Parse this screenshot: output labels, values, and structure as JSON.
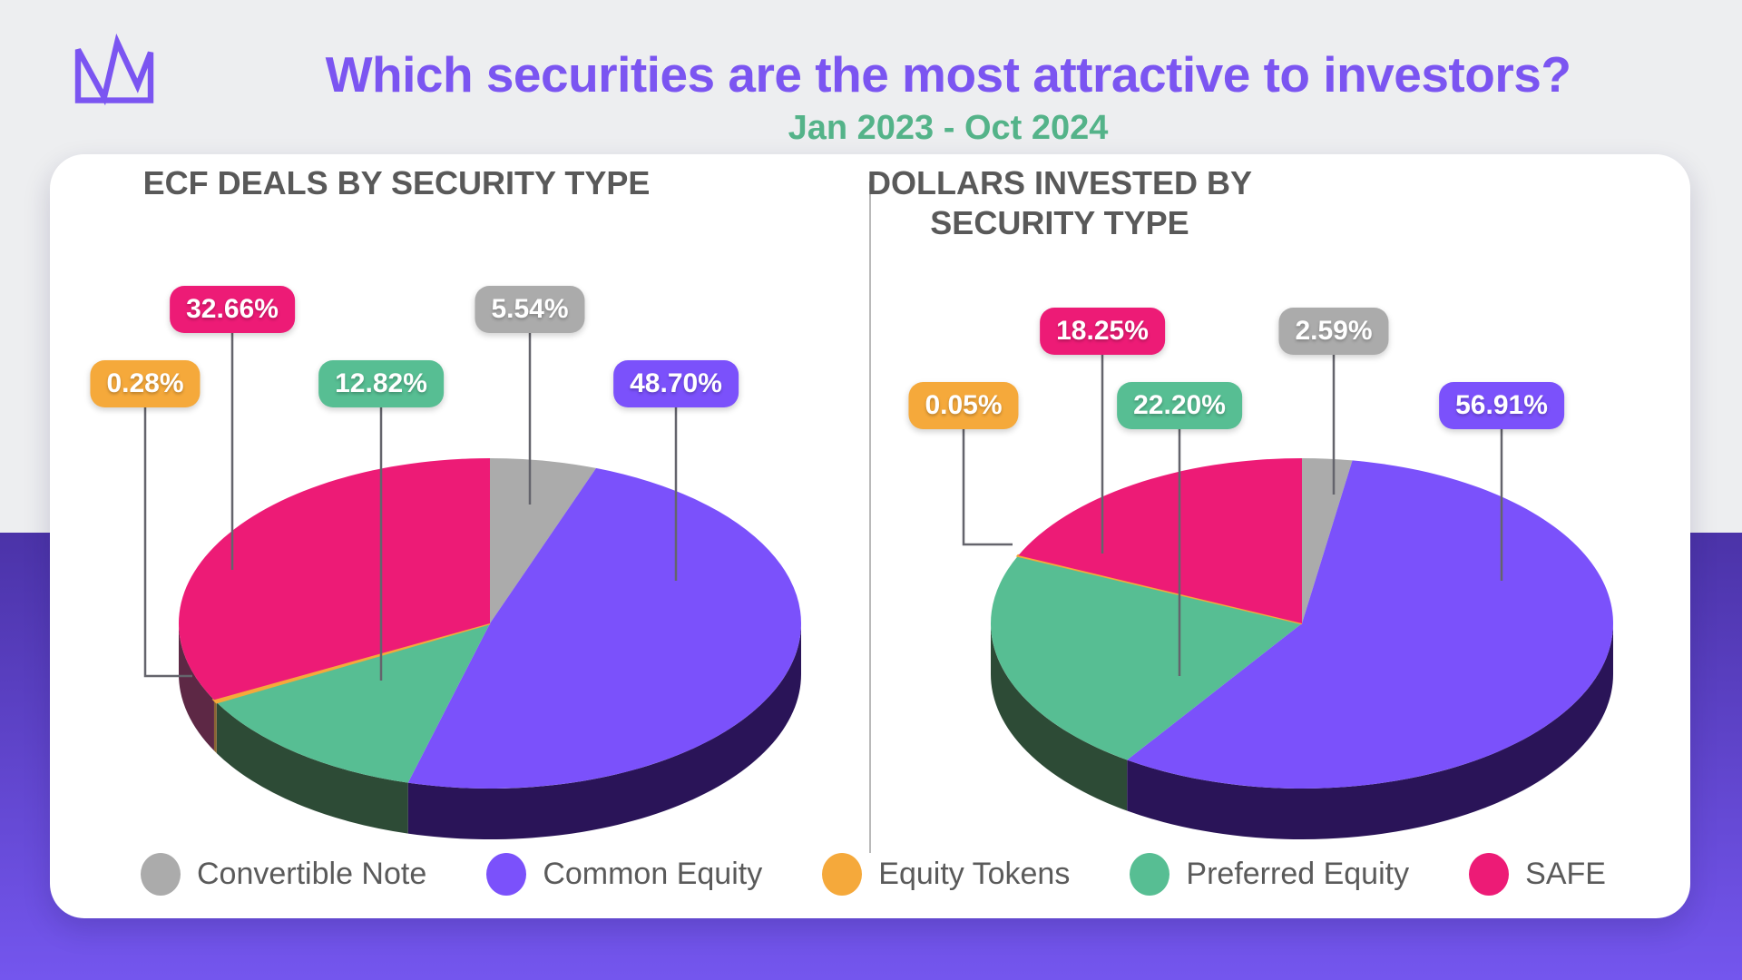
{
  "header": {
    "title": "Which securities are the most attractive to investors?",
    "subtitle": "Jan 2023 - Oct 2024",
    "logo_icon": "crown-icon",
    "title_color": "#7B55F1",
    "subtitle_color": "#54B389"
  },
  "palette": {
    "background_top": "#EDEEF0",
    "background_bottom_gradient_start": "#4B33A8",
    "background_bottom_gradient_end": "#7456EE",
    "card": "#FFFFFF",
    "divider": "#B9B9B9",
    "leader_line": "#64646C",
    "chart_title_color": "#595959",
    "legend_text_color": "#5A5A5A"
  },
  "legend": {
    "items": [
      {
        "label": "Convertible Note",
        "color": "#ABABAB"
      },
      {
        "label": "Common Equity",
        "color": "#7B51FB"
      },
      {
        "label": "Equity Tokens",
        "color": "#F5A93B"
      },
      {
        "label": "Preferred Equity",
        "color": "#57BE93"
      },
      {
        "label": "SAFE",
        "color": "#ED1B76"
      }
    ]
  },
  "chart_data": [
    {
      "type": "pie",
      "style": "3d",
      "title": "ECF DEALS BY SECURITY TYPE",
      "unit": "percent",
      "start_angle_deg": 0,
      "direction": "clockwise",
      "slices": [
        {
          "label": "Convertible Note",
          "value": 5.54,
          "value_label": "5.54%",
          "color": "#ABABAB",
          "side_color": "#8C8C8C"
        },
        {
          "label": "Common Equity",
          "value": 48.7,
          "value_label": "48.70%",
          "color": "#7B51FB",
          "side_color": "#2A1458"
        },
        {
          "label": "Preferred Equity",
          "value": 12.82,
          "value_label": "12.82%",
          "color": "#57BE93",
          "side_color": "#2D4B36"
        },
        {
          "label": "Equity Tokens",
          "value": 0.28,
          "value_label": "0.28%",
          "color": "#F5A93B",
          "side_color": "#8A6434"
        },
        {
          "label": "SAFE",
          "value": 32.66,
          "value_label": "32.66%",
          "color": "#ED1B76",
          "side_color": "#5D2845"
        }
      ]
    },
    {
      "type": "pie",
      "style": "3d",
      "title": "DOLLARS INVESTED BY SECURITY TYPE",
      "unit": "percent",
      "start_angle_deg": 0,
      "direction": "clockwise",
      "slices": [
        {
          "label": "Convertible Note",
          "value": 2.59,
          "value_label": "2.59%",
          "color": "#ABABAB",
          "side_color": "#8C8C8C"
        },
        {
          "label": "Common Equity",
          "value": 56.91,
          "value_label": "56.91%",
          "color": "#7B51FB",
          "side_color": "#2A1458"
        },
        {
          "label": "Preferred Equity",
          "value": 22.2,
          "value_label": "22.20%",
          "color": "#57BE93",
          "side_color": "#2D4B36"
        },
        {
          "label": "Equity Tokens",
          "value": 0.05,
          "value_label": "0.05%",
          "color": "#F5A93B",
          "side_color": "#8A6434"
        },
        {
          "label": "SAFE",
          "value": 18.25,
          "value_label": "18.25%",
          "color": "#ED1B76",
          "side_color": "#5D2845"
        }
      ]
    }
  ]
}
